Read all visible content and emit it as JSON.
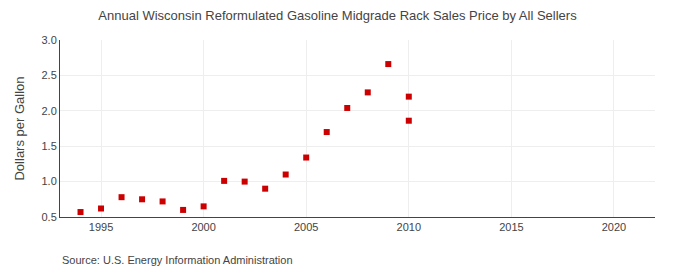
{
  "chart_data": {
    "type": "scatter",
    "title": "Annual Wisconsin Reformulated Gasoline Midgrade Rack Sales Price by All Sellers",
    "y_label": "Dollars per Gallon",
    "annotations": [
      "Source: U.S. Energy Information Administration"
    ],
    "x": [
      1994,
      1995,
      1996,
      1997,
      1998,
      1999,
      2000,
      2001,
      2002,
      2003,
      2004,
      2005,
      2006,
      2007,
      2008,
      2009,
      2010,
      2010
    ],
    "values": [
      0.57,
      0.62,
      0.78,
      0.75,
      0.72,
      0.6,
      0.65,
      1.01,
      1.0,
      0.9,
      1.1,
      1.34,
      1.7,
      2.04,
      2.26,
      2.66,
      1.86,
      2.2
    ],
    "color": "#cc0000",
    "marker": "square",
    "xlim": [
      1993,
      2022
    ],
    "xticks": [
      1995,
      2000,
      2005,
      2010,
      2015,
      2020
    ],
    "ylim": [
      0.5,
      3.0
    ],
    "yticks": [
      0.5,
      {
        "value": 1.0,
        "label": "1.0"
      },
      1.5,
      {
        "value": 2.0,
        "label": "2.0"
      },
      2.5,
      {
        "value": 3.0,
        "label": "3.0"
      }
    ],
    "grid": true
  }
}
